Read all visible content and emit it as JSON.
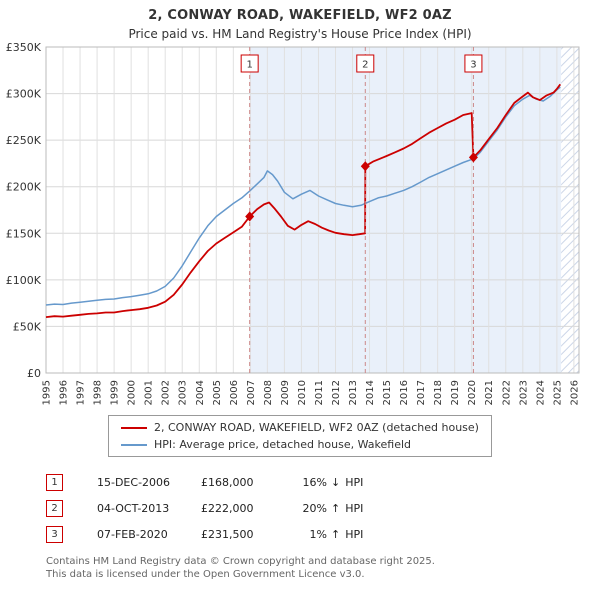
{
  "title": "2, CONWAY ROAD, WAKEFIELD, WF2 0AZ",
  "subtitle": "Price paid vs. HM Land Registry's House Price Index (HPI)",
  "chart_data": {
    "type": "line",
    "title": "2, CONWAY ROAD, WAKEFIELD, WF2 0AZ",
    "xlabel": "",
    "ylabel": "",
    "x_range": [
      1995,
      2026.3
    ],
    "y_range": [
      0,
      350000
    ],
    "x_tick_years": [
      1995,
      1996,
      1997,
      1998,
      1999,
      2000,
      2001,
      2002,
      2003,
      2004,
      2005,
      2006,
      2007,
      2008,
      2009,
      2010,
      2011,
      2012,
      2013,
      2014,
      2015,
      2016,
      2017,
      2018,
      2019,
      2020,
      2021,
      2022,
      2023,
      2024,
      2025,
      2026
    ],
    "y_ticks": [
      0,
      50000,
      100000,
      150000,
      200000,
      250000,
      300000,
      350000
    ],
    "y_tick_labels": [
      "£0",
      "£50K",
      "£100K",
      "£150K",
      "£200K",
      "£250K",
      "£300K",
      "£350K"
    ],
    "grid": true,
    "legend_position": "bottom",
    "shade": {
      "from": 2006.96,
      "to": 2025.25,
      "color": "#e9f0fa"
    },
    "hatch": {
      "from": 2025.25,
      "to": 2026.3,
      "stripe_color": "#ccd6e8"
    },
    "sale_line_color": "#cc8888",
    "series": [
      {
        "name": "2, CONWAY ROAD, WAKEFIELD, WF2 0AZ (detached house)",
        "color": "#cc0000",
        "points": [
          [
            1995.0,
            60000
          ],
          [
            1995.5,
            61000
          ],
          [
            1996.0,
            60500
          ],
          [
            1996.5,
            61500
          ],
          [
            1997.0,
            62500
          ],
          [
            1997.5,
            63500
          ],
          [
            1998.0,
            64000
          ],
          [
            1998.5,
            65000
          ],
          [
            1999.0,
            65000
          ],
          [
            1999.5,
            66500
          ],
          [
            2000.0,
            67500
          ],
          [
            2000.5,
            68500
          ],
          [
            2001.0,
            70000
          ],
          [
            2001.5,
            72500
          ],
          [
            2002.0,
            76500
          ],
          [
            2002.5,
            84000
          ],
          [
            2003.0,
            95000
          ],
          [
            2003.5,
            108000
          ],
          [
            2004.0,
            120000
          ],
          [
            2004.5,
            131000
          ],
          [
            2005.0,
            139000
          ],
          [
            2005.5,
            145000
          ],
          [
            2006.0,
            151000
          ],
          [
            2006.5,
            157000
          ],
          [
            2006.96,
            168000
          ],
          [
            2007.4,
            176000
          ],
          [
            2007.8,
            181000
          ],
          [
            2008.1,
            183000
          ],
          [
            2008.4,
            177000
          ],
          [
            2008.8,
            168000
          ],
          [
            2009.2,
            158000
          ],
          [
            2009.6,
            154000
          ],
          [
            2010.0,
            159000
          ],
          [
            2010.4,
            163000
          ],
          [
            2010.8,
            160000
          ],
          [
            2011.2,
            156000
          ],
          [
            2011.6,
            153000
          ],
          [
            2012.0,
            150500
          ],
          [
            2012.5,
            149000
          ],
          [
            2013.0,
            148000
          ],
          [
            2013.4,
            149000
          ],
          [
            2013.74,
            150000
          ],
          [
            2013.75,
            222000
          ],
          [
            2014.2,
            227000
          ],
          [
            2014.6,
            230000
          ],
          [
            2015.0,
            233000
          ],
          [
            2015.5,
            237000
          ],
          [
            2016.0,
            241000
          ],
          [
            2016.5,
            246000
          ],
          [
            2017.0,
            252000
          ],
          [
            2017.5,
            258000
          ],
          [
            2018.0,
            263000
          ],
          [
            2018.5,
            268000
          ],
          [
            2019.0,
            272000
          ],
          [
            2019.5,
            277000
          ],
          [
            2020.0,
            279000
          ],
          [
            2020.1,
            231500
          ],
          [
            2020.5,
            239000
          ],
          [
            2021.0,
            251000
          ],
          [
            2021.5,
            263000
          ],
          [
            2022.0,
            277000
          ],
          [
            2022.5,
            290000
          ],
          [
            2023.0,
            297000
          ],
          [
            2023.3,
            301000
          ],
          [
            2023.6,
            296000
          ],
          [
            2024.0,
            293000
          ],
          [
            2024.4,
            298000
          ],
          [
            2024.8,
            301000
          ],
          [
            2025.0,
            305000
          ],
          [
            2025.2,
            310000
          ]
        ]
      },
      {
        "name": "HPI: Average price, detached house, Wakefield",
        "color": "#6699cc",
        "points": [
          [
            1995.0,
            73000
          ],
          [
            1995.5,
            74000
          ],
          [
            1996.0,
            73500
          ],
          [
            1996.5,
            75000
          ],
          [
            1997.0,
            76000
          ],
          [
            1997.5,
            77000
          ],
          [
            1998.0,
            78000
          ],
          [
            1998.5,
            79000
          ],
          [
            1999.0,
            79500
          ],
          [
            1999.5,
            81000
          ],
          [
            2000.0,
            82000
          ],
          [
            2000.5,
            83500
          ],
          [
            2001.0,
            85000
          ],
          [
            2001.5,
            88000
          ],
          [
            2002.0,
            93000
          ],
          [
            2002.5,
            102000
          ],
          [
            2003.0,
            115000
          ],
          [
            2003.5,
            130000
          ],
          [
            2004.0,
            145000
          ],
          [
            2004.5,
            158000
          ],
          [
            2005.0,
            168000
          ],
          [
            2005.5,
            175000
          ],
          [
            2006.0,
            182000
          ],
          [
            2006.5,
            188000
          ],
          [
            2007.0,
            196000
          ],
          [
            2007.4,
            203000
          ],
          [
            2007.8,
            210000
          ],
          [
            2008.0,
            217000
          ],
          [
            2008.3,
            213000
          ],
          [
            2008.6,
            206000
          ],
          [
            2009.0,
            194000
          ],
          [
            2009.5,
            187000
          ],
          [
            2010.0,
            192000
          ],
          [
            2010.5,
            196000
          ],
          [
            2011.0,
            190000
          ],
          [
            2011.5,
            186000
          ],
          [
            2012.0,
            182000
          ],
          [
            2012.5,
            180000
          ],
          [
            2013.0,
            178500
          ],
          [
            2013.5,
            180000
          ],
          [
            2014.0,
            184000
          ],
          [
            2014.5,
            188000
          ],
          [
            2015.0,
            190000
          ],
          [
            2015.5,
            193000
          ],
          [
            2016.0,
            196000
          ],
          [
            2016.5,
            200000
          ],
          [
            2017.0,
            205000
          ],
          [
            2017.5,
            210000
          ],
          [
            2018.0,
            214000
          ],
          [
            2018.5,
            218000
          ],
          [
            2019.0,
            222000
          ],
          [
            2019.5,
            226000
          ],
          [
            2020.1,
            230000
          ],
          [
            2020.5,
            237000
          ],
          [
            2021.0,
            249000
          ],
          [
            2021.5,
            261000
          ],
          [
            2022.0,
            275000
          ],
          [
            2022.5,
            287000
          ],
          [
            2023.0,
            294000
          ],
          [
            2023.4,
            298000
          ],
          [
            2023.8,
            294000
          ],
          [
            2024.2,
            292000
          ],
          [
            2024.6,
            297000
          ],
          [
            2025.0,
            304000
          ],
          [
            2025.2,
            307000
          ]
        ]
      }
    ],
    "sales": [
      {
        "num": "1",
        "x": 2006.96,
        "y": 168000
      },
      {
        "num": "2",
        "x": 2013.75,
        "y": 222000
      },
      {
        "num": "3",
        "x": 2020.1,
        "y": 231500
      }
    ]
  },
  "transactions": [
    {
      "num": "1",
      "date": "15-DEC-2006",
      "price": "£168,000",
      "pct": "16%",
      "arrow": "↓",
      "ref": "HPI"
    },
    {
      "num": "2",
      "date": "04-OCT-2013",
      "price": "£222,000",
      "pct": "20%",
      "arrow": "↑",
      "ref": "HPI"
    },
    {
      "num": "3",
      "date": "07-FEB-2020",
      "price": "£231,500",
      "pct": "1%",
      "arrow": "↑",
      "ref": "HPI"
    }
  ],
  "footer": {
    "line1": "Contains HM Land Registry data © Crown copyright and database right 2025.",
    "line2": "This data is licensed under the Open Government Licence v3.0."
  }
}
